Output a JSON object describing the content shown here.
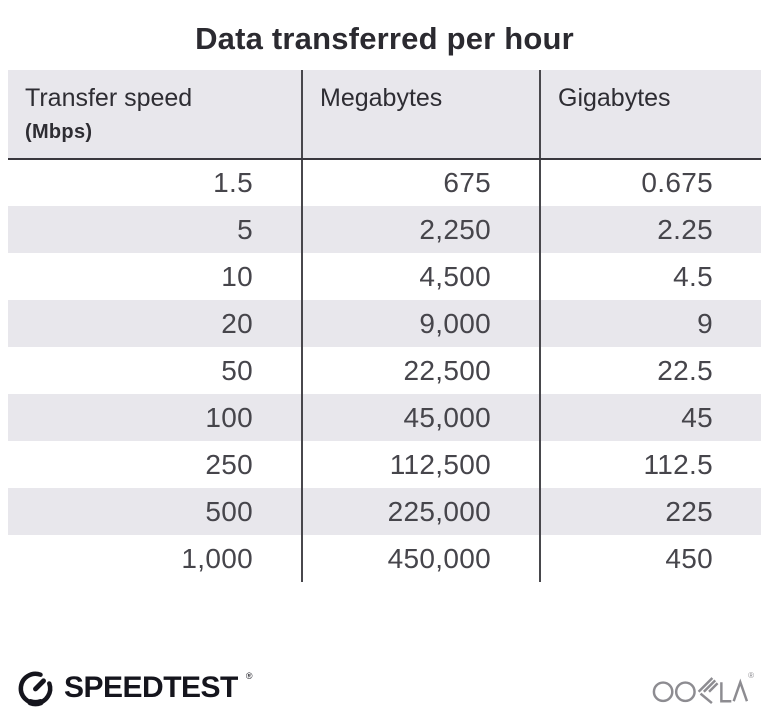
{
  "title": "Data transferred per hour",
  "table": {
    "columns": [
      {
        "label": "Transfer speed",
        "sublabel": "(Mbps)"
      },
      {
        "label": "Megabytes"
      },
      {
        "label": "Gigabytes"
      }
    ],
    "rows": [
      [
        "1.5",
        "675",
        "0.675"
      ],
      [
        "5",
        "2,250",
        "2.25"
      ],
      [
        "10",
        "4,500",
        "4.5"
      ],
      [
        "20",
        "9,000",
        "9"
      ],
      [
        "50",
        "22,500",
        "22.5"
      ],
      [
        "100",
        "45,000",
        "45"
      ],
      [
        "250",
        "112,500",
        "112.5"
      ],
      [
        "500",
        "225,000",
        "225"
      ],
      [
        "1,000",
        "450,000",
        "450"
      ]
    ]
  },
  "footer": {
    "speedtest_label": "SPEEDTEST",
    "speedtest_reg": "®",
    "ookla_label": "OOKLA",
    "ookla_reg": "®"
  },
  "colors": {
    "stripe_gray": "#e8e7ec",
    "divider_dark": "#48474c",
    "header_underline": "#39383e",
    "title_text": "#2b2a30",
    "body_text": "#46454b",
    "speedtest_brand": "#15151d",
    "ookla_gray": "#8d8c91"
  },
  "chart_data": {
    "type": "table",
    "title": "Data transferred per hour",
    "columns": [
      "Transfer speed (Mbps)",
      "Megabytes",
      "Gigabytes"
    ],
    "rows": [
      [
        1.5,
        675,
        0.675
      ],
      [
        5,
        2250,
        2.25
      ],
      [
        10,
        4500,
        4.5
      ],
      [
        20,
        9000,
        9
      ],
      [
        50,
        22500,
        22.5
      ],
      [
        100,
        45000,
        45
      ],
      [
        250,
        112500,
        112.5
      ],
      [
        500,
        225000,
        225
      ],
      [
        1000,
        450000,
        450
      ]
    ]
  }
}
